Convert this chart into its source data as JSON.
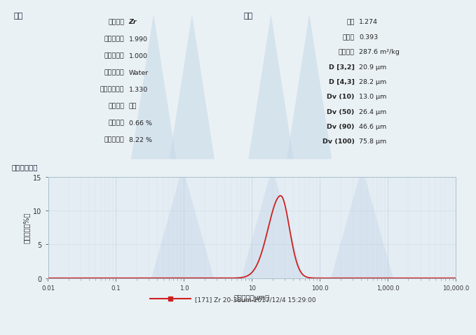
{
  "bg_color": "#eaf1f5",
  "panel_bg_left": "#dde8ef",
  "panel_bg_right": "#e8f0f5",
  "chart_bg": "#e4edf4",
  "watermark_color": "#c5d8e8",
  "border_color": "#a8bfcc",
  "header_bg": "#d5e4ec",
  "top_section_title_left": "分析",
  "top_section_title_right": "结果",
  "left_params": [
    [
      "颗粒名称",
      "Zr"
    ],
    [
      "颗粒折射率",
      "1.990"
    ],
    [
      "颗粒吸收率",
      "1.000"
    ],
    [
      "分散剂名称",
      "Water"
    ],
    [
      "分散剂折射率",
      "1.330"
    ],
    [
      "分析模型",
      "通用"
    ],
    [
      "加权残差",
      "0.66 %"
    ],
    [
      "激光遗光度",
      "8.22 %"
    ]
  ],
  "right_params": [
    [
      "径距",
      "1.274"
    ],
    [
      "一致性",
      "0.393"
    ],
    [
      "比表面积",
      "287.6 m²/kg"
    ],
    [
      "D [3,2]",
      "20.9 μm"
    ],
    [
      "D [4,3]",
      "28.2 μm"
    ],
    [
      "Dv (10)",
      "13.0 μm"
    ],
    [
      "Dv (50)",
      "26.4 μm"
    ],
    [
      "Dv (90)",
      "46.6 μm"
    ],
    [
      "Dv (100)",
      "75.8 μm"
    ]
  ],
  "chart_section_title": "频率（兼容）",
  "ylabel": "体积密度（%）",
  "xlabel": "粒度分级（μm）",
  "legend_label": "[171] Zr 20-38um-2017/12/4 15:29:00",
  "curve_color": "#cc2020",
  "curve_peak": 12.2,
  "ylim": [
    0,
    15
  ],
  "yticks": [
    0,
    5,
    10,
    15
  ],
  "xtick_positions": [
    0.01,
    0.1,
    1.0,
    10,
    100,
    1000,
    10000
  ],
  "xtick_labels": [
    "0.01",
    "0.1",
    "1.0",
    "10",
    "100.0",
    "1,000.0",
    "10,000.0"
  ]
}
